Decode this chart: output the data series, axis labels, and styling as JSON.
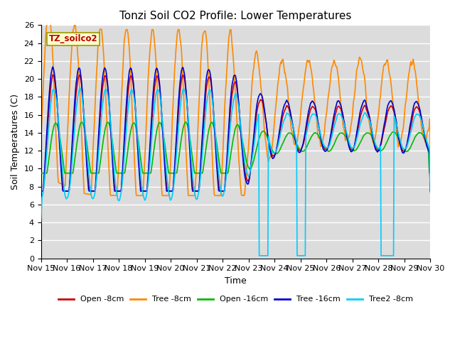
{
  "title": "Tonzi Soil CO2 Profile: Lower Temperatures",
  "xlabel": "Time",
  "ylabel": "Soil Temperatures (C)",
  "ylim": [
    0,
    26
  ],
  "xlim": [
    0,
    15
  ],
  "bg_color": "#dcdcdc",
  "plot_bg": "#dcdcdc",
  "legend_label": "TZ_soilco2",
  "series": {
    "open8": {
      "label": "Open -8cm",
      "color": "#cc0000",
      "lw": 1.2
    },
    "tree8": {
      "label": "Tree -8cm",
      "color": "#ff8800",
      "lw": 1.2
    },
    "open16": {
      "label": "Open -16cm",
      "color": "#00bb00",
      "lw": 1.2
    },
    "tree16": {
      "label": "Tree -16cm",
      "color": "#0000cc",
      "lw": 1.2
    },
    "tree2_8": {
      "label": "Tree2 -8cm",
      "color": "#00ccff",
      "lw": 1.2
    }
  },
  "xtick_labels": [
    "Nov 15",
    "Nov 16",
    "Nov 17",
    "Nov 18",
    "Nov 19",
    "Nov 20",
    "Nov 21",
    "Nov 22",
    "Nov 23",
    "Nov 24",
    "Nov 25",
    "Nov 26",
    "Nov 27",
    "Nov 28",
    "Nov 29",
    "Nov 30"
  ],
  "xtick_positions": [
    0,
    1,
    2,
    3,
    4,
    5,
    6,
    7,
    8,
    9,
    10,
    11,
    12,
    13,
    14,
    15
  ],
  "ytick_positions": [
    0,
    2,
    4,
    6,
    8,
    10,
    12,
    14,
    16,
    18,
    20,
    22,
    24,
    26
  ],
  "grid_color": "#ffffff",
  "title_fontsize": 11,
  "axis_label_fontsize": 9,
  "tick_fontsize": 8
}
